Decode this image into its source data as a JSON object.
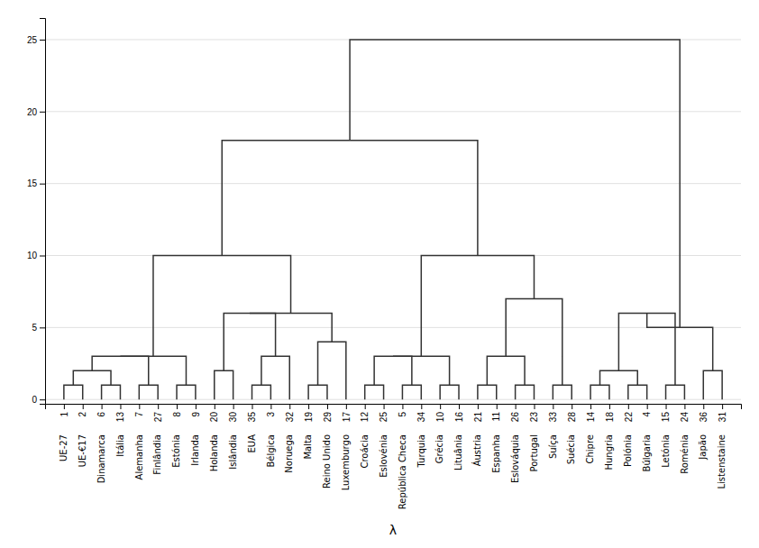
{
  "chart_data": {
    "type": "dendrogram",
    "xlabel": "λ",
    "categories": [
      "UE-27",
      "UE-€17",
      "Dinamarca",
      "Itália",
      "Alemanha",
      "Finlândia",
      "Estónia",
      "Irlanda",
      "Holanda",
      "Islândia",
      "EUA",
      "Bélgica",
      "Noruega",
      "Malta",
      "Reino Unido",
      "Luxemburgo",
      "Croácia",
      "Eslovénia",
      "República Checa",
      "Turquia",
      "Grécia",
      "Lituânia",
      "Áustria",
      "Espanha",
      "Eslováquia",
      "Portugal",
      "Suíça",
      "Suécia",
      "Chipre",
      "Hungria",
      "Polónia",
      "Búlgaria",
      "Letónia",
      "Roménia",
      "Japão",
      "Listenstaine"
    ],
    "leaf_numbers": [
      1,
      2,
      6,
      13,
      7,
      27,
      8,
      9,
      20,
      30,
      35,
      3,
      32,
      19,
      29,
      17,
      12,
      25,
      5,
      34,
      10,
      16,
      21,
      11,
      26,
      23,
      33,
      28,
      14,
      18,
      22,
      4,
      15,
      24,
      36,
      31
    ],
    "leaf_height": 0,
    "merges": [
      {
        "left": 0,
        "right": 1,
        "height": 1.0
      },
      {
        "left": 2,
        "right": 3,
        "height": 1.0
      },
      {
        "left": 36,
        "right": 37,
        "height": 2.0
      },
      {
        "left": 4,
        "right": 5,
        "height": 1.0
      },
      {
        "left": 38,
        "right": 39,
        "height": 3.0
      },
      {
        "left": 6,
        "right": 7,
        "height": 1.0
      },
      {
        "left": 40,
        "right": 41,
        "height": 3.0
      },
      {
        "left": 8,
        "right": 9,
        "height": 2.0
      },
      {
        "left": 10,
        "right": 11,
        "height": 1.0
      },
      {
        "left": 44,
        "right": 12,
        "height": 3.0
      },
      {
        "left": 43,
        "right": 45,
        "height": 6.0
      },
      {
        "left": 13,
        "right": 14,
        "height": 1.0
      },
      {
        "left": 47,
        "right": 15,
        "height": 4.0
      },
      {
        "left": 46,
        "right": 48,
        "height": 6.0
      },
      {
        "left": 42,
        "right": 49,
        "height": 10.0
      },
      {
        "left": 16,
        "right": 17,
        "height": 1.0
      },
      {
        "left": 18,
        "right": 19,
        "height": 1.0
      },
      {
        "left": 51,
        "right": 52,
        "height": 3.0
      },
      {
        "left": 20,
        "right": 21,
        "height": 1.0
      },
      {
        "left": 53,
        "right": 54,
        "height": 3.0
      },
      {
        "left": 22,
        "right": 23,
        "height": 1.0
      },
      {
        "left": 24,
        "right": 25,
        "height": 1.0
      },
      {
        "left": 56,
        "right": 57,
        "height": 3.0
      },
      {
        "left": 26,
        "right": 27,
        "height": 1.0
      },
      {
        "left": 58,
        "right": 59,
        "height": 7.0
      },
      {
        "left": 55,
        "right": 60,
        "height": 10.0
      },
      {
        "left": 50,
        "right": 61,
        "height": 18.0
      },
      {
        "left": 28,
        "right": 29,
        "height": 1.0
      },
      {
        "left": 30,
        "right": 31,
        "height": 1.0
      },
      {
        "left": 63,
        "right": 64,
        "height": 2.0
      },
      {
        "left": 32,
        "right": 33,
        "height": 1.0
      },
      {
        "left": 65,
        "right": 66,
        "height": 6.0
      },
      {
        "left": 34,
        "right": 35,
        "height": 2.0
      },
      {
        "left": 67,
        "right": 68,
        "height": 5.0
      },
      {
        "left": 62,
        "right": 69,
        "height": 25.0
      }
    ],
    "ylim": [
      -0.3,
      26.5
    ],
    "yticks": [
      0,
      5,
      10,
      15,
      20,
      25
    ],
    "grid": true
  }
}
